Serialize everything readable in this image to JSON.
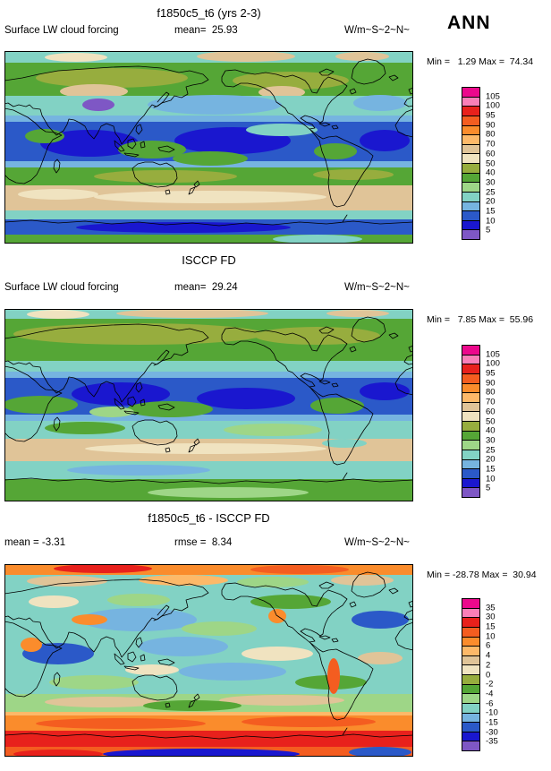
{
  "header": {
    "season_label": "ANN"
  },
  "palette_top_to_bottom": [
    "#ec088c",
    "#fa7fb8",
    "#e8211c",
    "#f45d20",
    "#fb8c2c",
    "#fdb969",
    "#e0c498",
    "#f0e3c0",
    "#97ad3e",
    "#55a636",
    "#9ed687",
    "#82d2c4",
    "#76b4e0",
    "#2b59c8",
    "#1a17cf",
    "#7e57c5"
  ],
  "panels": [
    {
      "title": "f1850c5_t6 (yrs 2-3)",
      "left_label": "Surface LW cloud forcing",
      "center_label": "mean=  25.93",
      "units_label": "W/m~S~2~N~",
      "minmax_label": "Min =   1.29 Max =  74.34",
      "colorbar_labels": [
        "105",
        "100",
        "95",
        "90",
        "80",
        "70",
        "60",
        "50",
        "40",
        "30",
        "25",
        "20",
        "15",
        "10",
        "5"
      ]
    },
    {
      "title": "ISCCP FD",
      "left_label": "Surface LW cloud forcing",
      "center_label": "mean=  29.24",
      "units_label": "W/m~S~2~N~",
      "minmax_label": "Min =   7.85 Max =  55.96",
      "colorbar_labels": [
        "105",
        "100",
        "95",
        "90",
        "80",
        "70",
        "60",
        "50",
        "40",
        "30",
        "25",
        "20",
        "15",
        "10",
        "5"
      ]
    },
    {
      "title": "f1850c5_t6 - ISCCP FD",
      "left_label": "mean = -3.31",
      "center_label": "rmse =  8.34",
      "units_label": "W/m~S~2~N~",
      "minmax_label": "Min = -28.78 Max =  30.94",
      "colorbar_labels": [
        "35",
        "30",
        "15",
        "10",
        "6",
        "4",
        "2",
        "0",
        "-2",
        "-4",
        "-6",
        "-10",
        "-15",
        "-30",
        "-35"
      ]
    }
  ],
  "chart_data": [
    {
      "type": "heatmap",
      "title": "f1850c5_t6 (yrs 2-3)",
      "variable": "Surface LW cloud forcing",
      "season": "ANN",
      "units": "W/m^2",
      "projection": "global lat-lon map, cylindrical equidistant, centered on 180E",
      "mean": 25.93,
      "min": 1.29,
      "max": 74.34,
      "contour_levels": [
        5,
        10,
        15,
        20,
        25,
        30,
        40,
        50,
        60,
        70,
        80,
        90,
        95,
        100,
        105
      ],
      "legend_position": "right vertical labelbar",
      "grid": false
    },
    {
      "type": "heatmap",
      "title": "ISCCP FD",
      "variable": "Surface LW cloud forcing",
      "season": "ANN",
      "units": "W/m^2",
      "projection": "global lat-lon map, cylindrical equidistant, centered on 180E",
      "mean": 29.24,
      "min": 7.85,
      "max": 55.96,
      "contour_levels": [
        5,
        10,
        15,
        20,
        25,
        30,
        40,
        50,
        60,
        70,
        80,
        90,
        95,
        100,
        105
      ],
      "legend_position": "right vertical labelbar",
      "grid": false
    },
    {
      "type": "heatmap",
      "title": "f1850c5_t6 - ISCCP FD",
      "variable": "Surface LW cloud forcing difference",
      "season": "ANN",
      "units": "W/m^2",
      "projection": "global lat-lon map, cylindrical equidistant, centered on 180E",
      "mean": -3.31,
      "rmse": 8.34,
      "min": -28.78,
      "max": 30.94,
      "contour_levels": [
        -35,
        -30,
        -15,
        -10,
        -6,
        -4,
        -2,
        0,
        2,
        4,
        6,
        10,
        15,
        30,
        35
      ],
      "legend_position": "right vertical labelbar",
      "grid": false
    }
  ]
}
